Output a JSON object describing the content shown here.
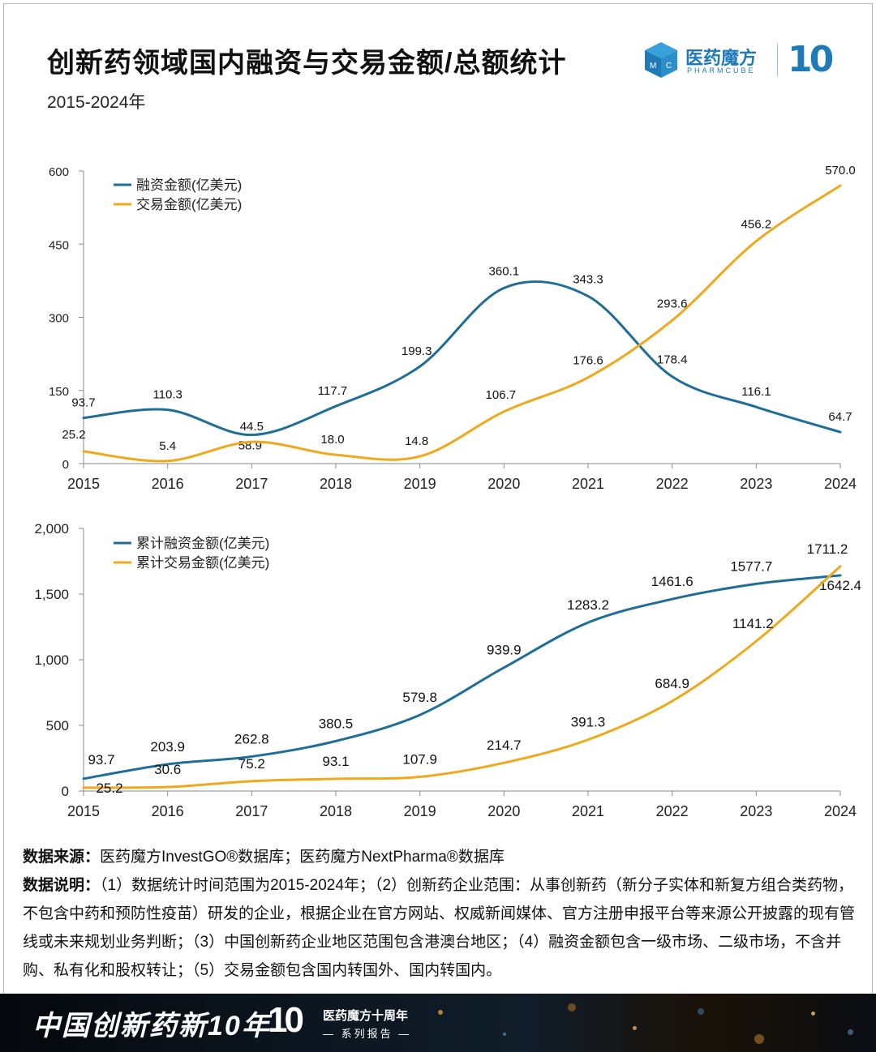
{
  "header": {
    "title": "创新药领域国内融资与交易金额/总额统计",
    "subtitle": "2015-2024年"
  },
  "logo": {
    "name_cn": "医药魔方",
    "name_en": "PHARMCUBE",
    "anniversary": "10",
    "cube_letters": [
      "M",
      "C"
    ]
  },
  "colors": {
    "financing": "#1f6d99",
    "deal": "#f0a81d",
    "axis": "#8a8a8a"
  },
  "chart_data": [
    {
      "type": "line",
      "categories": [
        "2015",
        "2016",
        "2017",
        "2018",
        "2019",
        "2020",
        "2021",
        "2022",
        "2023",
        "2024"
      ],
      "ylim": [
        0,
        600
      ],
      "yticks": [
        "0",
        "150",
        "300",
        "450",
        "600"
      ],
      "ytick_values": [
        0,
        150,
        300,
        450,
        600
      ],
      "legend_position": "top-left",
      "smooth": true,
      "series": [
        {
          "name": "融资金额(亿美元)",
          "values": [
            93.7,
            110.3,
            58.9,
            117.7,
            199.3,
            360.1,
            343.3,
            178.4,
            116.1,
            64.7
          ],
          "labels": [
            "93.7",
            "110.3",
            "58.9",
            "117.7",
            "199.3",
            "360.1",
            "343.3",
            "178.4",
            "116.1",
            "64.7"
          ]
        },
        {
          "name": "交易金额(亿美元)",
          "values": [
            25.2,
            5.4,
            44.5,
            18.0,
            14.8,
            106.7,
            176.6,
            293.6,
            456.2,
            570.0
          ],
          "labels": [
            "25.2",
            "5.4",
            "44.5",
            "18.0",
            "14.8",
            "106.7",
            "176.6",
            "293.6",
            "456.2",
            "570.0"
          ]
        }
      ]
    },
    {
      "type": "line",
      "categories": [
        "2015",
        "2016",
        "2017",
        "2018",
        "2019",
        "2020",
        "2021",
        "2022",
        "2023",
        "2024"
      ],
      "ylim": [
        0,
        2000
      ],
      "yticks": [
        "0",
        "500",
        "1,000",
        "1,500",
        "2,000"
      ],
      "ytick_values": [
        0,
        500,
        1000,
        1500,
        2000
      ],
      "legend_position": "top-left",
      "smooth": true,
      "series": [
        {
          "name": "累计融资金额(亿美元)",
          "values": [
            93.7,
            203.9,
            262.8,
            380.5,
            579.8,
            939.9,
            1283.2,
            1461.6,
            1577.7,
            1642.4
          ],
          "labels": [
            "93.7",
            "203.9",
            "262.8",
            "380.5",
            "579.8",
            "939.9",
            "1283.2",
            "1461.6",
            "1577.7",
            "1642.4"
          ]
        },
        {
          "name": "累计交易金额(亿美元)",
          "values": [
            25.2,
            30.6,
            75.2,
            93.1,
            107.9,
            214.7,
            391.3,
            684.9,
            1141.2,
            1711.2
          ],
          "labels": [
            "25.2",
            "30.6",
            "75.2",
            "93.1",
            "107.9",
            "214.7",
            "391.3",
            "684.9",
            "1141.2",
            "1711.2"
          ]
        }
      ]
    }
  ],
  "notes": {
    "source_label": "数据来源：",
    "source_text": "医药魔方InvestGO®数据库；医药魔方NextPharma®数据库",
    "desc_label": "数据说明：",
    "desc_text": "（1）数据统计时间范围为2015-2024年；（2）创新药企业范围：从事创新药（新分子实体和新复方组合类药物，不包含中药和预防性疫苗）研发的企业，根据企业在官方网站、权威新闻媒体、官方注册申报平台等来源公开披露的现有管线或未来规划业务判断；（3）中国创新药企业地区范围包含港澳台地区；（4）融资金额包含一级市场、二级市场，不含并购、私有化和股权转让；（5）交易金额包含国内转国外、国内转国内。"
  },
  "banner": {
    "title": "中国创新药新10年",
    "ten": "10",
    "sub1": "医药魔方十周年",
    "sub2": "— 系列报告 —"
  }
}
